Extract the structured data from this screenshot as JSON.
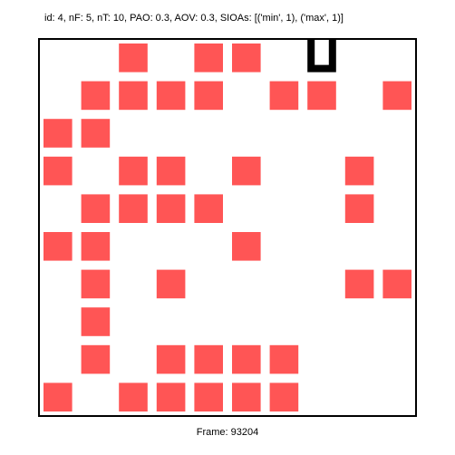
{
  "header": {
    "title": "id: 4, nF: 5, nT: 10, PAO: 0.3, AOV: 0.3, SIOAs: [('min', 1), ('max', 1)]"
  },
  "footer": {
    "frame_label": "Frame: 93204"
  },
  "grid": {
    "rows": 10,
    "cols": 10,
    "tile_color": "#ff5555",
    "border_color": "#000000",
    "cursor_color": "#000000",
    "cursor_cell": {
      "row": 0,
      "col": 7,
      "shape": "open-cup"
    },
    "tiles": [
      {
        "row": 0,
        "col": 2
      },
      {
        "row": 0,
        "col": 4
      },
      {
        "row": 0,
        "col": 5
      },
      {
        "row": 1,
        "col": 1
      },
      {
        "row": 1,
        "col": 2
      },
      {
        "row": 1,
        "col": 3
      },
      {
        "row": 1,
        "col": 4
      },
      {
        "row": 1,
        "col": 6
      },
      {
        "row": 1,
        "col": 7
      },
      {
        "row": 1,
        "col": 9
      },
      {
        "row": 2,
        "col": 0
      },
      {
        "row": 2,
        "col": 1
      },
      {
        "row": 3,
        "col": 0
      },
      {
        "row": 3,
        "col": 2
      },
      {
        "row": 3,
        "col": 3
      },
      {
        "row": 3,
        "col": 5
      },
      {
        "row": 3,
        "col": 8
      },
      {
        "row": 4,
        "col": 1
      },
      {
        "row": 4,
        "col": 2
      },
      {
        "row": 4,
        "col": 3
      },
      {
        "row": 4,
        "col": 4
      },
      {
        "row": 4,
        "col": 8
      },
      {
        "row": 5,
        "col": 0
      },
      {
        "row": 5,
        "col": 1
      },
      {
        "row": 5,
        "col": 5
      },
      {
        "row": 6,
        "col": 1
      },
      {
        "row": 6,
        "col": 3
      },
      {
        "row": 6,
        "col": 8
      },
      {
        "row": 6,
        "col": 9
      },
      {
        "row": 7,
        "col": 1
      },
      {
        "row": 8,
        "col": 1
      },
      {
        "row": 8,
        "col": 3
      },
      {
        "row": 8,
        "col": 4
      },
      {
        "row": 8,
        "col": 5
      },
      {
        "row": 8,
        "col": 6
      },
      {
        "row": 9,
        "col": 0
      },
      {
        "row": 9,
        "col": 2
      },
      {
        "row": 9,
        "col": 3
      },
      {
        "row": 9,
        "col": 4
      },
      {
        "row": 9,
        "col": 5
      },
      {
        "row": 9,
        "col": 6
      }
    ]
  }
}
